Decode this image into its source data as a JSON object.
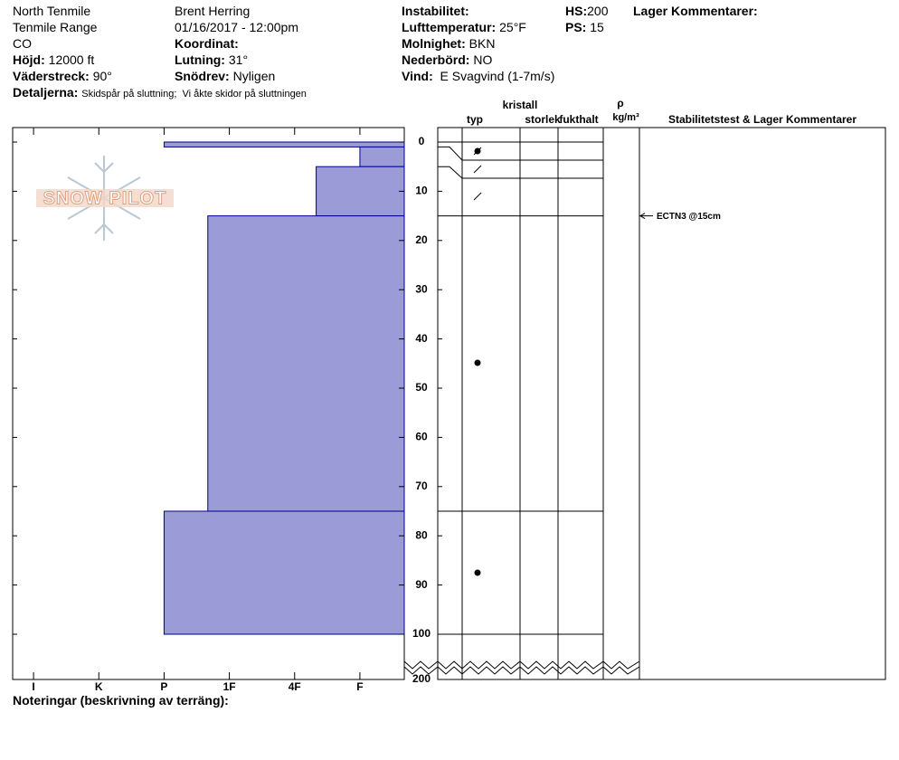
{
  "header": {
    "location": [
      "North Tenmile",
      "Tenmile Range",
      "CO"
    ],
    "elevation": {
      "label": "Höjd:",
      "value": "12000 ft"
    },
    "aspect": {
      "label": "Väderstreck:",
      "value": "90°"
    },
    "details": {
      "label": "Detaljerna:",
      "value": "Skidspår på sluttning;  Vi åkte skidor på sluttningen"
    },
    "observer": "Brent Herring",
    "datetime": "01/16/2017 - 12:00pm",
    "coordinates": {
      "label": "Koordinat:"
    },
    "slope": {
      "label": "Lutning:",
      "value": "31°"
    },
    "wind_loading": {
      "label": "Snödrev:",
      "value": "Nyligen"
    },
    "instability": {
      "label": "Instabilitet:"
    },
    "air_temp": {
      "label": "Lufttemperatur:",
      "value": "25°F"
    },
    "sky": {
      "label": "Molnighet:",
      "value": "BKN"
    },
    "precip": {
      "label": "Nederbörd:",
      "value": "NO"
    },
    "wind": {
      "label": "Vind:",
      "value": "E Svagvind (1-7m/s)"
    },
    "hs": {
      "label": "HS:",
      "value": "200"
    },
    "ps": {
      "label": "PS:",
      "value": "15"
    },
    "layer_comments": "Lager Kommentarer:"
  },
  "profile": {
    "xlim": [
      -0.32,
      5.68
    ],
    "xticks": [
      {
        "value": 0,
        "label": "I"
      },
      {
        "value": 1,
        "label": "K"
      },
      {
        "value": 2,
        "label": "P"
      },
      {
        "value": 3,
        "label": "1F"
      },
      {
        "value": 4,
        "label": "4F"
      },
      {
        "value": 5,
        "label": "F"
      }
    ],
    "ylim": [
      -2.94,
      100
    ],
    "yticks": [
      0,
      10,
      20,
      30,
      40,
      50,
      60,
      70,
      80,
      90,
      100
    ],
    "ybreak_tick": 200,
    "layers": [
      {
        "top": 0,
        "bottom": 1,
        "hardness": 2
      },
      {
        "top": 1,
        "bottom": 5,
        "hardness": 5
      },
      {
        "top": 5,
        "bottom": 15,
        "hardness": 4.33
      },
      {
        "top": 15,
        "bottom": 75,
        "hardness": 2.67
      },
      {
        "top": 75,
        "bottom": 100,
        "hardness": 2
      }
    ],
    "columns": {
      "crystal": "kristall",
      "type": "typ",
      "size": "storlek",
      "moisture": "fukthalt",
      "rho": "ρ",
      "density_unit": "kg/m³",
      "tests": "Stabilitetstest & Lager Kommentarer"
    },
    "stability_tests": [
      {
        "depth": 15,
        "label": "ECTN3 @15cm"
      }
    ],
    "notes_label": "Noteringar (beskrivning av terräng):"
  },
  "logo": "SNOW PILOT"
}
